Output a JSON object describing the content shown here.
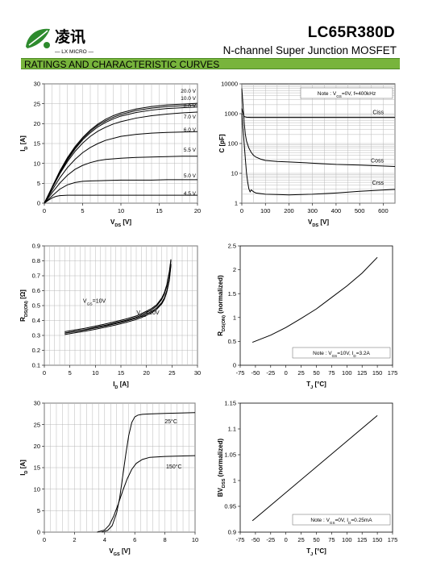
{
  "header": {
    "brand_cn": "凌讯",
    "brand_sub": "— LX MICRO —",
    "part_number": "LC65R380D",
    "description": "N-channel Super Junction MOSFET",
    "section_title": "RATINGS AND CHARACTERISTIC CURVES"
  },
  "colors": {
    "section_bg": "#78b43c",
    "logo_green": "#2e8b2e",
    "grid": "#b8b8b8",
    "curve": "#000000"
  },
  "chart_data": [
    {
      "id": "output",
      "type": "line",
      "xlabel": {
        "main": "V",
        "sub": "DS",
        "unit": " [V]"
      },
      "ylabel": {
        "main": "I",
        "sub": "D",
        "unit": " [A]"
      },
      "xlim": [
        0,
        20
      ],
      "ylim": [
        0,
        30
      ],
      "xticks": [
        0,
        5,
        10,
        15,
        20
      ],
      "yticks": [
        0,
        5,
        10,
        15,
        20,
        25,
        30
      ],
      "grid": true,
      "series": [
        {
          "name": "20.0 V",
          "x": [
            0,
            1,
            2,
            3,
            4,
            5,
            6,
            7,
            8,
            9,
            10,
            12,
            14,
            16,
            18,
            20
          ],
          "y": [
            0,
            4,
            8,
            11.4,
            14.2,
            16.5,
            18.4,
            19.9,
            21.1,
            22,
            22.7,
            23.7,
            24.3,
            24.7,
            24.9,
            25.1
          ]
        },
        {
          "name": "10.0 V",
          "x": [
            0,
            1,
            2,
            3,
            4,
            5,
            6,
            7,
            8,
            9,
            10,
            12,
            14,
            16,
            18,
            20
          ],
          "y": [
            0,
            3.9,
            7.8,
            11.1,
            13.9,
            16.2,
            18.1,
            19.6,
            20.7,
            21.6,
            22.3,
            23.3,
            23.9,
            24.3,
            24.5,
            24.7
          ]
        },
        {
          "name": "8.0 V",
          "x": [
            0,
            1,
            2,
            3,
            4,
            5,
            6,
            7,
            8,
            9,
            10,
            12,
            14,
            16,
            18,
            20
          ],
          "y": [
            0,
            3.8,
            7.6,
            10.8,
            13.6,
            15.9,
            17.7,
            19.2,
            20.3,
            21.2,
            21.9,
            22.8,
            23.4,
            23.8,
            24,
            24.2
          ]
        },
        {
          "name": "7.0 V",
          "x": [
            0,
            1,
            2,
            3,
            4,
            5,
            6,
            7,
            8,
            9,
            10,
            12,
            14,
            16,
            18,
            20
          ],
          "y": [
            0,
            3.7,
            7.3,
            10.4,
            13,
            15.1,
            16.8,
            18.1,
            19.1,
            19.9,
            20.5,
            21.4,
            22,
            22.4,
            22.7,
            22.9
          ]
        },
        {
          "name": "6.0 V",
          "x": [
            0,
            1,
            2,
            3,
            4,
            5,
            6,
            7,
            8,
            10,
            12,
            14,
            16,
            18,
            20
          ],
          "y": [
            0,
            3.2,
            6.3,
            8.9,
            11,
            12.7,
            14,
            15,
            15.8,
            16.8,
            17.3,
            17.6,
            17.8,
            17.9,
            18
          ]
        },
        {
          "name": "5.5 V",
          "x": [
            0,
            1,
            2,
            3,
            4,
            5,
            6,
            7,
            8,
            10,
            12,
            14,
            16,
            18,
            20
          ],
          "y": [
            0,
            2.6,
            5,
            7,
            8.5,
            9.5,
            10.2,
            10.7,
            11,
            11.3,
            11.5,
            11.6,
            11.7,
            11.8,
            11.8
          ]
        },
        {
          "name": "5.0 V",
          "x": [
            0,
            1,
            2,
            3,
            4,
            5,
            6,
            8,
            10,
            12,
            14,
            16,
            18,
            20
          ],
          "y": [
            0,
            1.8,
            3.5,
            4.6,
            5.2,
            5.5,
            5.6,
            5.7,
            5.8,
            5.8,
            5.8,
            5.9,
            5.9,
            5.9
          ]
        },
        {
          "name": "4.5 V",
          "x": [
            0,
            0.5,
            1,
            1.5,
            2,
            3,
            4,
            6,
            8,
            10,
            12,
            14,
            16,
            18,
            20
          ],
          "y": [
            0,
            0.7,
            1.3,
            1.7,
            1.9,
            2,
            2,
            2,
            2,
            2,
            2,
            2,
            2,
            2,
            2
          ]
        }
      ]
    },
    {
      "id": "capacitance",
      "type": "line",
      "xlabel": {
        "main": "V",
        "sub": "DS",
        "unit": " [V]"
      },
      "ylabel": {
        "main": "C",
        "sub": "",
        "unit": " [pF]"
      },
      "xlim": [
        0,
        650
      ],
      "ylim": [
        1,
        10000
      ],
      "yscale": "log",
      "xticks": [
        0,
        100,
        200,
        300,
        400,
        500,
        600
      ],
      "yticks": [
        1,
        10,
        100,
        1000,
        10000
      ],
      "grid": true,
      "note": {
        "pre": "Note : V",
        "sub": "GS",
        "post": "=0V, f=400kHz"
      },
      "series": [
        {
          "name": "Ciss",
          "x": [
            0,
            5,
            10,
            20,
            40,
            100,
            200,
            300,
            400,
            500,
            650
          ],
          "y": [
            1500,
            1000,
            800,
            760,
            750,
            750,
            750,
            750,
            750,
            750,
            750
          ]
        },
        {
          "name": "Coss",
          "x": [
            0,
            5,
            10,
            15,
            20,
            30,
            40,
            50,
            60,
            80,
            100,
            150,
            200,
            300,
            400,
            500,
            650
          ],
          "y": [
            7000,
            2000,
            500,
            200,
            120,
            70,
            50,
            40,
            35,
            30,
            27,
            25,
            24,
            22,
            20,
            19,
            17
          ]
        },
        {
          "name": "Crss",
          "x": [
            0,
            5,
            10,
            15,
            20,
            25,
            30,
            35,
            40,
            50,
            60,
            80,
            100,
            150,
            200,
            300,
            400,
            500,
            650
          ],
          "y": [
            1000,
            300,
            100,
            30,
            10,
            5,
            3,
            2.4,
            2.8,
            2.4,
            2.2,
            2.1,
            2,
            1.95,
            1.9,
            2,
            2.2,
            2.5,
            2.9
          ]
        }
      ]
    },
    {
      "id": "rdson_vs_id",
      "type": "line",
      "xlabel": {
        "main": "I",
        "sub": "D",
        "unit": " [A]"
      },
      "ylabel": {
        "main": "R",
        "sub": "DS(ON)",
        "unit": " [Ω]"
      },
      "xlim": [
        0,
        30
      ],
      "ylim": [
        0.1,
        0.9
      ],
      "xticks": [
        0,
        5,
        10,
        15,
        20,
        25,
        30
      ],
      "yticks": [
        0.1,
        0.2,
        0.3,
        0.4,
        0.5,
        0.6,
        0.7,
        0.8,
        0.9
      ],
      "grid": true,
      "series": [
        {
          "name": "V_GS=10V",
          "x": [
            4,
            6,
            8,
            10,
            12,
            14,
            16,
            18,
            19,
            20,
            21,
            22,
            23,
            23.5,
            24,
            24.5,
            24.8
          ],
          "y": [
            0.325,
            0.336,
            0.348,
            0.362,
            0.377,
            0.393,
            0.41,
            0.43,
            0.445,
            0.462,
            0.48,
            0.505,
            0.55,
            0.585,
            0.64,
            0.73,
            0.81
          ]
        },
        {
          "name": "V_GS=20V",
          "x": [
            4,
            6,
            8,
            10,
            12,
            14,
            16,
            18,
            19,
            20,
            21,
            22,
            23,
            23.5,
            24,
            24.5,
            24.8
          ],
          "y": [
            0.315,
            0.326,
            0.337,
            0.35,
            0.364,
            0.379,
            0.396,
            0.415,
            0.428,
            0.443,
            0.46,
            0.483,
            0.52,
            0.55,
            0.6,
            0.68,
            0.78
          ]
        }
      ],
      "labels": [
        {
          "pre": "V",
          "sub": "GS",
          "post": "=10V",
          "x": 9.8,
          "y": 0.52
        },
        {
          "pre": "V",
          "sub": "GS",
          "post": "=20V",
          "x": 20.3,
          "y": 0.44
        }
      ]
    },
    {
      "id": "rdson_vs_tj",
      "type": "line",
      "xlabel": {
        "main": "T",
        "sub": "J",
        "unit": " [°C]"
      },
      "ylabel": {
        "main": "R",
        "sub": "DS(ON)",
        "unit": " (normalized)"
      },
      "xlim": [
        -75,
        175
      ],
      "ylim": [
        0,
        2.5
      ],
      "xticks": [
        -75,
        -50,
        -25,
        0,
        25,
        50,
        75,
        100,
        125,
        150,
        175
      ],
      "yticks": [
        0,
        0.5,
        1,
        1.5,
        2,
        2.5
      ],
      "grid": false,
      "note": {
        "pre": "Note : V",
        "sub": "GS",
        "post": "=10V, I",
        "sub2": "D",
        "post2": "=3.2A"
      },
      "series": [
        {
          "name": "",
          "x": [
            -55,
            -25,
            0,
            25,
            50,
            75,
            100,
            125,
            150
          ],
          "y": [
            0.48,
            0.63,
            0.79,
            0.98,
            1.18,
            1.42,
            1.66,
            1.93,
            2.26
          ]
        }
      ]
    },
    {
      "id": "transfer",
      "type": "line",
      "xlabel": {
        "main": "V",
        "sub": "GS",
        "unit": " [V]"
      },
      "ylabel": {
        "main": "I",
        "sub": "D",
        "unit": " [A]"
      },
      "xlim": [
        0,
        10
      ],
      "ylim": [
        0,
        30
      ],
      "xticks": [
        0,
        2,
        4,
        6,
        8,
        10
      ],
      "yticks": [
        0,
        5,
        10,
        15,
        20,
        25,
        30
      ],
      "grid": true,
      "series": [
        {
          "name": "25°C",
          "x": [
            3.8,
            4.2,
            4.5,
            4.8,
            5,
            5.2,
            5.4,
            5.6,
            5.8,
            6,
            6.2,
            6.5,
            7,
            8,
            10
          ],
          "y": [
            0,
            0.4,
            1.5,
            4.5,
            8,
            13,
            18,
            22.5,
            25.5,
            26.8,
            27.2,
            27.4,
            27.5,
            27.6,
            27.8
          ]
        },
        {
          "name": "150°C",
          "x": [
            3.5,
            4,
            4.3,
            4.6,
            4.9,
            5.2,
            5.5,
            5.8,
            6.1,
            6.5,
            7,
            8,
            10
          ],
          "y": [
            0,
            0.5,
            1.6,
            3.7,
            6.5,
            9.6,
            12.4,
            14.6,
            16,
            16.9,
            17.4,
            17.6,
            17.8
          ]
        }
      ],
      "labels": [
        {
          "pre": "25°C",
          "x": 8.4,
          "y": 25.3
        },
        {
          "pre": "150°C",
          "x": 8.6,
          "y": 14.8
        }
      ]
    },
    {
      "id": "bvdss_vs_tj",
      "type": "line",
      "xlabel": {
        "main": "T",
        "sub": "J",
        "unit": " [°C]"
      },
      "ylabel": {
        "main": "BV",
        "sub": "DSS",
        "unit": " (normalized)"
      },
      "xlim": [
        -75,
        175
      ],
      "ylim": [
        0.9,
        1.15
      ],
      "xticks": [
        -75,
        -50,
        -25,
        0,
        25,
        50,
        75,
        100,
        125,
        150,
        175
      ],
      "yticks": [
        0.9,
        0.95,
        1,
        1.05,
        1.1,
        1.15
      ],
      "grid": false,
      "note": {
        "pre": "Note : V",
        "sub": "GS",
        "post": "=0V, I",
        "sub2": "D",
        "post2": "=0.25mA"
      },
      "series": [
        {
          "name": "",
          "x": [
            -55,
            150
          ],
          "y": [
            0.922,
            1.126
          ]
        }
      ]
    }
  ]
}
